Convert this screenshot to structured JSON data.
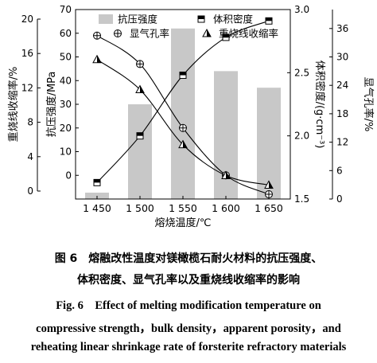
{
  "chart_data": {
    "type": "bar+line",
    "x": {
      "label": "熔烧温度/℃",
      "categories": [
        "1 450",
        "1 500",
        "1 550",
        "1 600",
        "1 650"
      ]
    },
    "axes": {
      "far_left": {
        "label": "重烧线收缩率/%",
        "min": 0,
        "max": 20,
        "ticks": [
          0,
          4,
          8,
          12,
          16,
          20
        ]
      },
      "left": {
        "label": "抗压强度/MPa",
        "min": -10,
        "max": 70,
        "ticks": [
          0,
          10,
          20,
          30,
          40,
          50,
          60,
          70
        ]
      },
      "right": {
        "label": "体积密度/(g·cm⁻³)",
        "min": 1.5,
        "max": 3.0,
        "ticks": [
          "1.5",
          "2.0",
          "2.5",
          "3.0"
        ]
      },
      "far_right": {
        "label": "显气孔率/%",
        "min": 0,
        "max": 40,
        "ticks": [
          0,
          6,
          12,
          18,
          24,
          30,
          36
        ]
      }
    },
    "series": [
      {
        "name": "抗压强度",
        "kind": "bar",
        "axis": "left",
        "color": "#c8c8c8",
        "values": [
          -10,
          30,
          62,
          44,
          37
        ]
      },
      {
        "name": "体积密度",
        "kind": "line",
        "marker": "square",
        "axis": "right",
        "color": "#000000",
        "values": [
          1.63,
          2.0,
          2.48,
          2.78,
          2.91
        ]
      },
      {
        "name": "显气孔率",
        "kind": "line",
        "marker": "circle-plus",
        "axis": "far_right",
        "color": "#000000",
        "values": [
          34.5,
          28.5,
          15.0,
          5.0,
          1.0
        ]
      },
      {
        "name": "重烧线收缩率",
        "kind": "line",
        "marker": "triangle",
        "axis": "far_left",
        "color": "#000000",
        "values": [
          15.3,
          11.8,
          5.4,
          1.8,
          0.7
        ]
      }
    ],
    "legend": {
      "placement": "top-center"
    }
  },
  "caption": {
    "cn_line1": "图 6　熔融改性温度对镁橄榄石耐火材料的抗压强度、",
    "cn_line2": "体积密度、显气孔率以及重烧线收缩率的影响",
    "en_line1": "Fig. 6　Effect of melting modification temperature on",
    "en_line2": "compressive strength，bulk density，apparent porosity，and",
    "en_line3": "reheating linear shrinkage rate of forsterite refractory materials"
  }
}
